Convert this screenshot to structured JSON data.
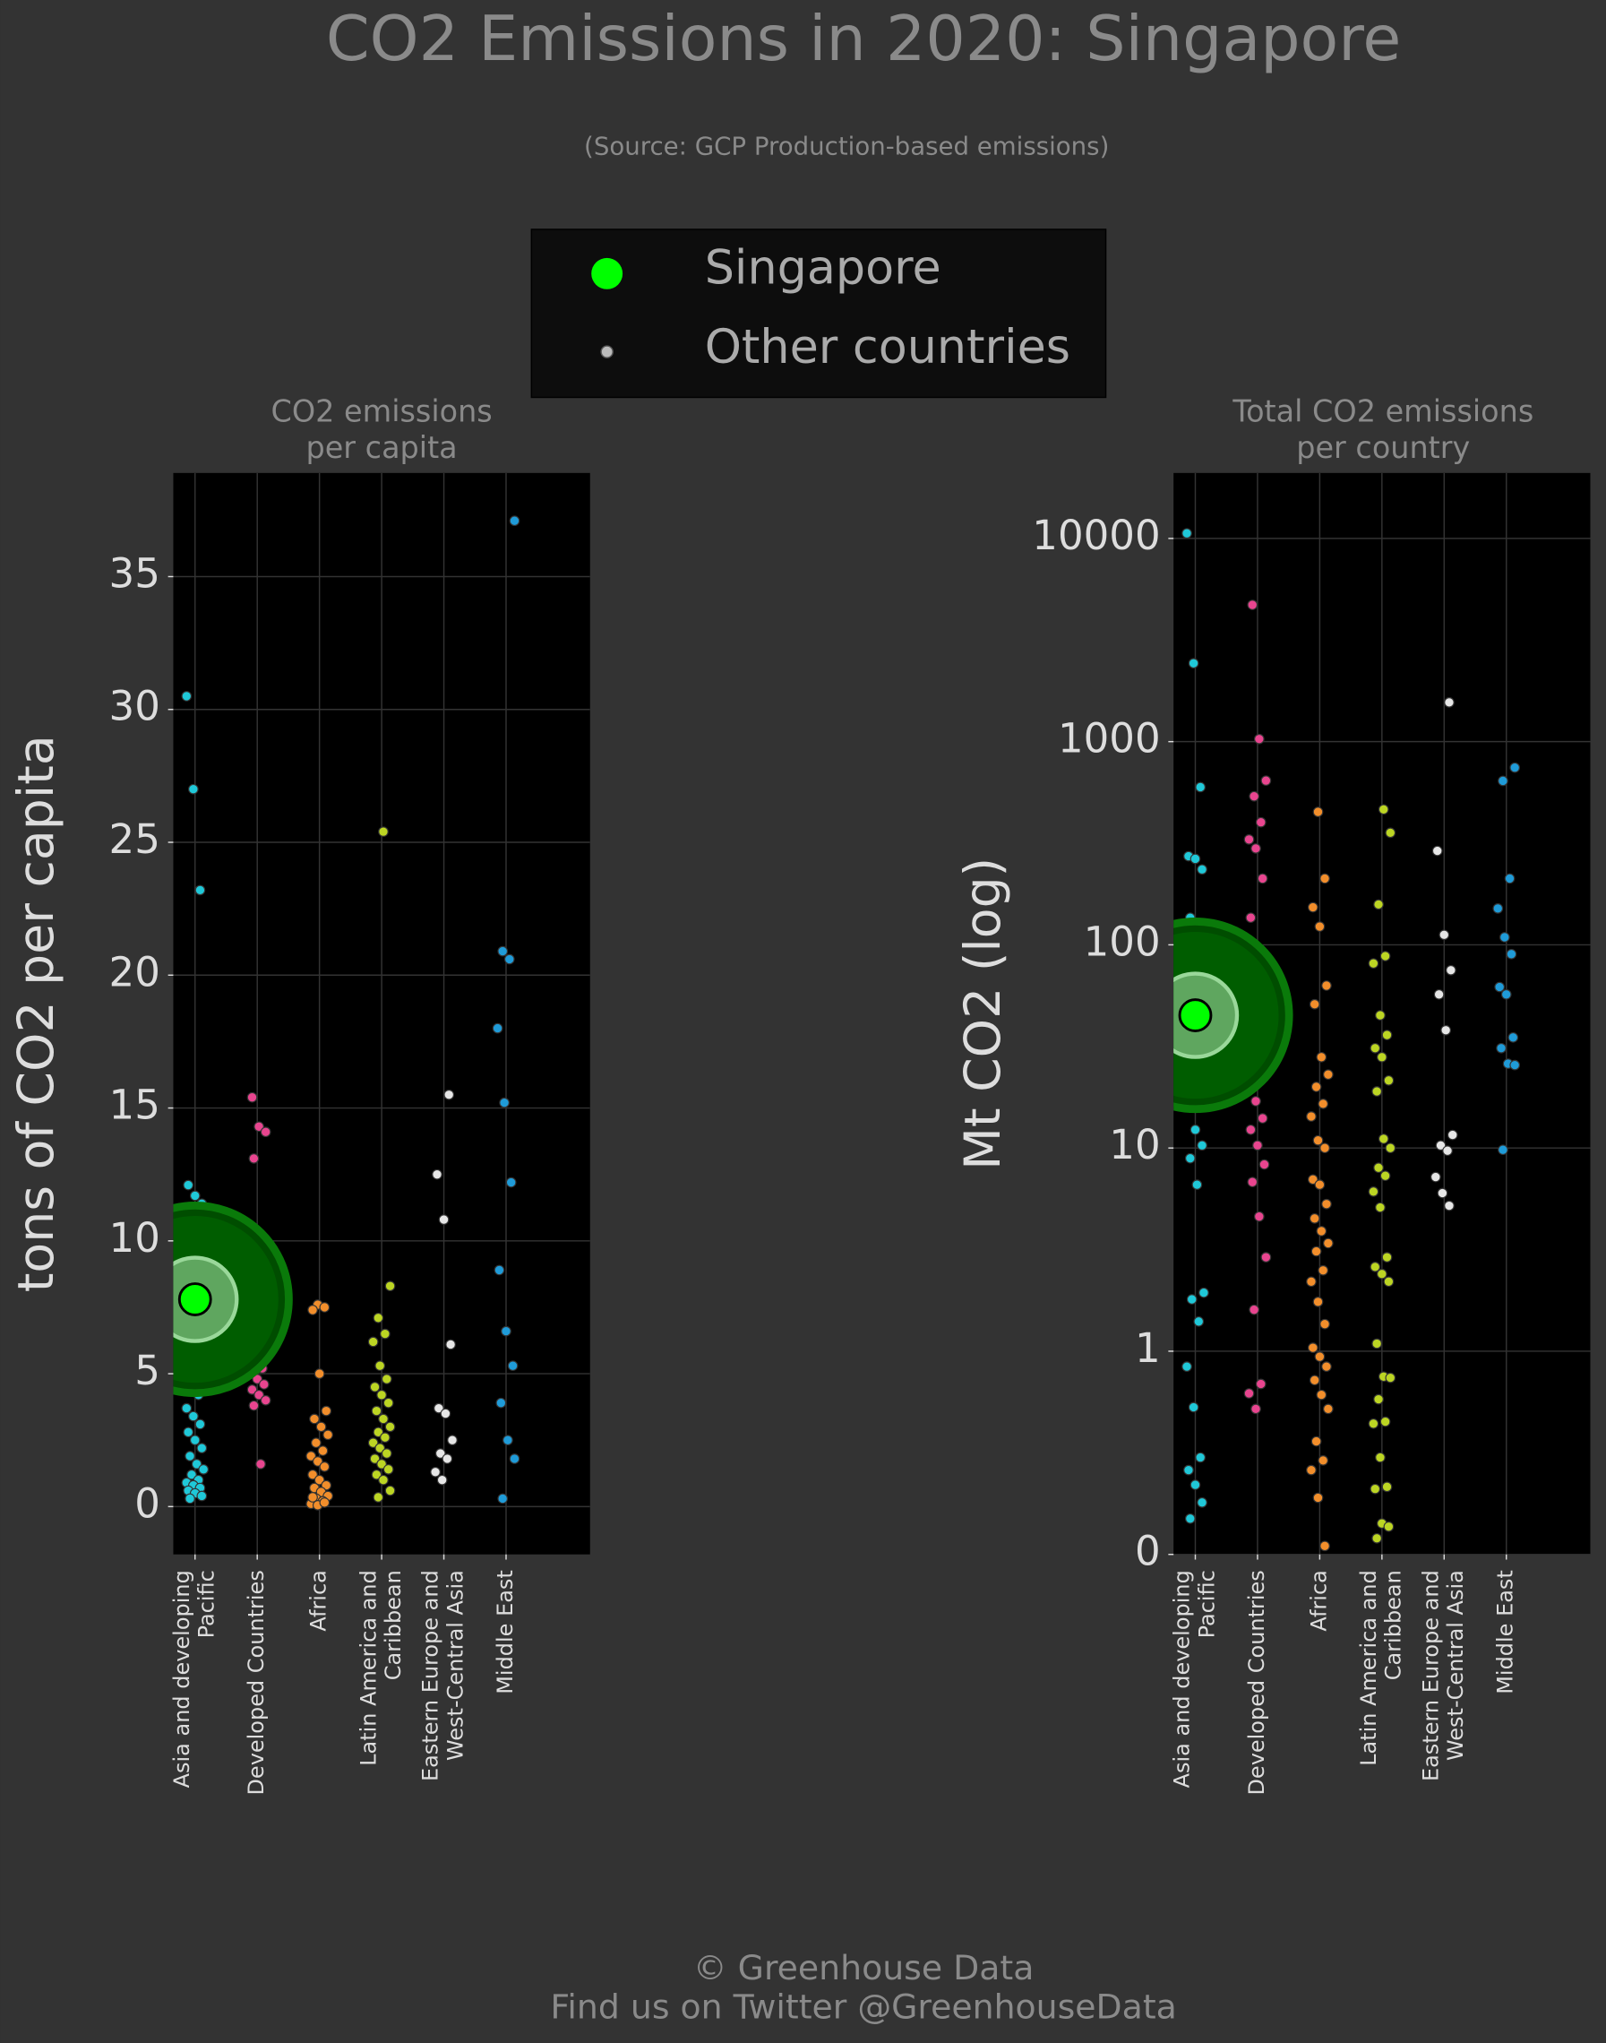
{
  "title": "CO2 Emissions in 2020: Singapore",
  "subtitle": "(Source: GCP Production-based emissions)",
  "footer": [
    "© Greenhouse Data",
    "Find us on Twitter @GreenhouseData"
  ],
  "chart_data": [
    {
      "type": "strip",
      "title": [
        "CO2 emissions",
        "per capita"
      ],
      "ylabel": "tons of CO2 per capita",
      "categories": [
        [
          "Asia and developing",
          "Pacific"
        ],
        [
          "Developed Countries"
        ],
        [
          "Africa"
        ],
        [
          "Latin America and",
          "Caribbean"
        ],
        [
          "Eastern Europe and",
          "West-Central Asia"
        ],
        [
          "Middle East"
        ]
      ],
      "category_colors": [
        "#1fc8d8",
        "#e8458f",
        "#f28e2b",
        "#bcd523",
        "#e6e6e6",
        "#1f9bd8"
      ],
      "ylim": [
        -1.8,
        38.9
      ],
      "yticks": [
        0,
        5,
        10,
        15,
        20,
        25,
        30,
        35
      ],
      "grid": true,
      "series": [
        {
          "name": "Singapore",
          "color": "#00ff00",
          "values": [
            7.8,
            null,
            null,
            null,
            null,
            null
          ]
        },
        {
          "name": "Other countries",
          "color": "#bbbbbb",
          "values": [
            [
              30.5,
              27,
              23.2,
              12.1,
              11.7,
              11.4,
              8.4,
              7.2,
              6.5,
              4.6,
              4.2,
              3.7,
              3.4,
              3.1,
              2.8,
              2.5,
              2.2,
              1.9,
              1.6,
              1.4,
              1.2,
              1.0,
              0.9,
              0.8,
              0.7,
              0.6,
              0.5,
              0.4,
              0.3
            ],
            [
              15.4,
              14.3,
              14.1,
              13.1,
              10.0,
              9.2,
              8.9,
              8.4,
              8.2,
              7.9,
              7.7,
              7.4,
              7.1,
              6.8,
              6.5,
              6.1,
              5.7,
              5.4,
              5.2,
              5.0,
              4.8,
              4.6,
              4.4,
              4.2,
              4.0,
              3.8,
              1.6
            ],
            [
              7.6,
              7.5,
              7.4,
              5.0,
              3.6,
              3.3,
              3.0,
              2.7,
              2.4,
              2.1,
              1.9,
              1.7,
              1.5,
              1.2,
              1.0,
              0.8,
              0.7,
              0.55,
              0.4,
              0.3,
              0.2,
              0.1,
              0.05,
              0.15,
              0.35
            ],
            [
              25.4,
              8.3,
              7.1,
              6.5,
              6.2,
              5.3,
              4.8,
              4.5,
              4.2,
              3.9,
              3.6,
              3.3,
              3.0,
              2.8,
              2.6,
              2.4,
              2.2,
              2.0,
              1.8,
              1.6,
              1.4,
              1.2,
              1.0,
              0.6,
              0.35
            ],
            [
              15.5,
              12.5,
              10.8,
              6.1,
              3.7,
              3.5,
              2.5,
              2.0,
              1.8,
              1.3,
              1.0
            ],
            [
              37.1,
              20.9,
              20.6,
              18.0,
              15.2,
              12.2,
              8.9,
              6.6,
              5.3,
              3.9,
              2.5,
              1.8,
              0.3
            ]
          ]
        }
      ]
    },
    {
      "type": "strip",
      "title": [
        "Total CO2 emissions",
        "per country"
      ],
      "ylabel": "Mt CO2 (log)",
      "categories": [
        [
          "Asia and developing",
          "Pacific"
        ],
        [
          "Developed Countries"
        ],
        [
          "Africa"
        ],
        [
          "Latin America and",
          "Caribbean"
        ],
        [
          "Eastern Europe and",
          "West-Central Asia"
        ],
        [
          "Middle East"
        ]
      ],
      "category_colors": [
        "#1fc8d8",
        "#e8458f",
        "#f28e2b",
        "#bcd523",
        "#e6e6e6",
        "#1f9bd8"
      ],
      "yscale": "log",
      "ylim": [
        0.1,
        21000
      ],
      "yticks": [
        {
          "value": 0.1,
          "label": "0"
        },
        1,
        10,
        100,
        1000,
        10000
      ],
      "grid": true,
      "series": [
        {
          "name": "Singapore",
          "color": "#00ff00",
          "values": [
            45,
            null,
            null,
            null,
            null,
            null
          ]
        },
        {
          "name": "Other countries",
          "color": "#bbbbbb",
          "values": [
            [
              10600,
              2430,
              597,
              273,
              265,
              235,
              136,
              89,
              60,
              50,
              38,
              34,
              31,
              21,
              17,
              12.3,
              10.3,
              8.9,
              6.6,
              1.94,
              1.8,
              1.4,
              0.84,
              0.53,
              0.3,
              0.26,
              0.22,
              0.18,
              0.15
            ],
            [
              4710,
              1030,
              643,
              538,
              401,
              330,
              298,
              212,
              136,
              88,
              70,
              59,
              45,
              39,
              34,
              27,
              22,
              17,
              14,
              12.3,
              10.3,
              8.3,
              6.8,
              4.6,
              2.9,
              1.6,
              0.69,
              0.62,
              0.52
            ],
            [
              451,
              212,
              153,
              123,
              63,
              51,
              28,
              23,
              20,
              16.5,
              14.3,
              10.9,
              10,
              7,
              6.6,
              5.3,
              4.5,
              3.9,
              3.4,
              3.1,
              2.5,
              2.2,
              1.75,
              1.36,
              1.04,
              0.94,
              0.84,
              0.72,
              0.61,
              0.52,
              0.36,
              0.29,
              0.26,
              0.19,
              0.11
            ],
            [
              464,
              356,
              158,
              88,
              81,
              45,
              36,
              31,
              28,
              21.5,
              19,
              11.1,
              10,
              8,
              7.3,
              6.1,
              5.1,
              2.9,
              2.6,
              2.4,
              2.2,
              1.09,
              0.75,
              0.74,
              0.58,
              0.45,
              0.44,
              0.3,
              0.215,
              0.21,
              0.142,
              0.137,
              0.12
            ],
            [
              1560,
              290,
              112,
              75,
              57,
              38,
              11.6,
              10.3,
              9.7,
              7.2,
              6,
              5.2
            ],
            [
              745,
              641,
              212,
              151,
              109,
              90,
              62,
              57,
              35,
              31,
              26,
              25.6,
              9.8
            ]
          ]
        }
      ]
    }
  ]
}
